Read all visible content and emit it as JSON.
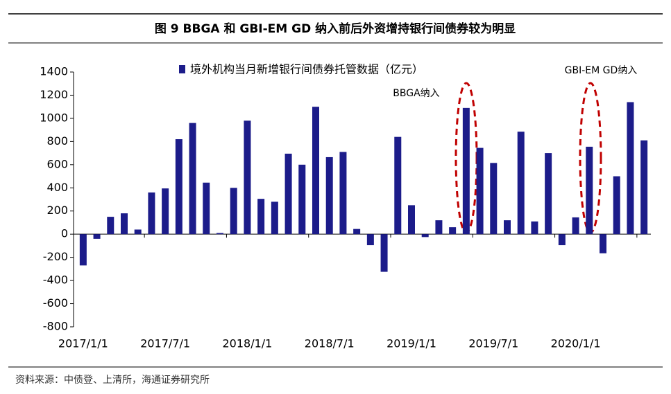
{
  "chart_data": {
    "type": "bar",
    "title": "图 9  BBGA 和 GBI-EM GD 纳入前后外资增持银行间债券较为明显",
    "source": "资料来源：中债登、上清所，海通证券研究所",
    "annotations": [
      "BBGA纳入",
      "GBI-EM GD纳入"
    ],
    "categories": [
      "2017/1/1",
      null,
      null,
      null,
      null,
      null,
      "2017/7/1",
      null,
      null,
      null,
      null,
      null,
      "2018/1/1",
      null,
      null,
      null,
      null,
      null,
      "2018/7/1",
      null,
      null,
      null,
      null,
      null,
      "2019/1/1",
      null,
      null,
      null,
      null,
      null,
      "2019/7/1",
      null,
      null,
      null,
      null,
      null,
      "2020/1/1",
      null,
      null,
      null,
      null,
      null
    ],
    "series": [
      {
        "name": "境外机构当月新增银行间债券托管数据（亿元）",
        "color": "#1c1c8a",
        "values": [
          -270,
          -40,
          150,
          180,
          40,
          360,
          395,
          820,
          960,
          445,
          10,
          400,
          980,
          305,
          280,
          695,
          600,
          1100,
          665,
          710,
          45,
          -95,
          -325,
          840,
          250,
          -25,
          120,
          60,
          1090,
          745,
          615,
          120,
          885,
          110,
          700,
          -95,
          145,
          755,
          -165,
          500,
          1140,
          810
        ]
      }
    ],
    "ylim": [
      -800,
      1400
    ],
    "yticks": [
      -800,
      -600,
      -400,
      -200,
      0,
      200,
      400,
      600,
      800,
      1000,
      1200,
      1400
    ],
    "grid": false
  }
}
